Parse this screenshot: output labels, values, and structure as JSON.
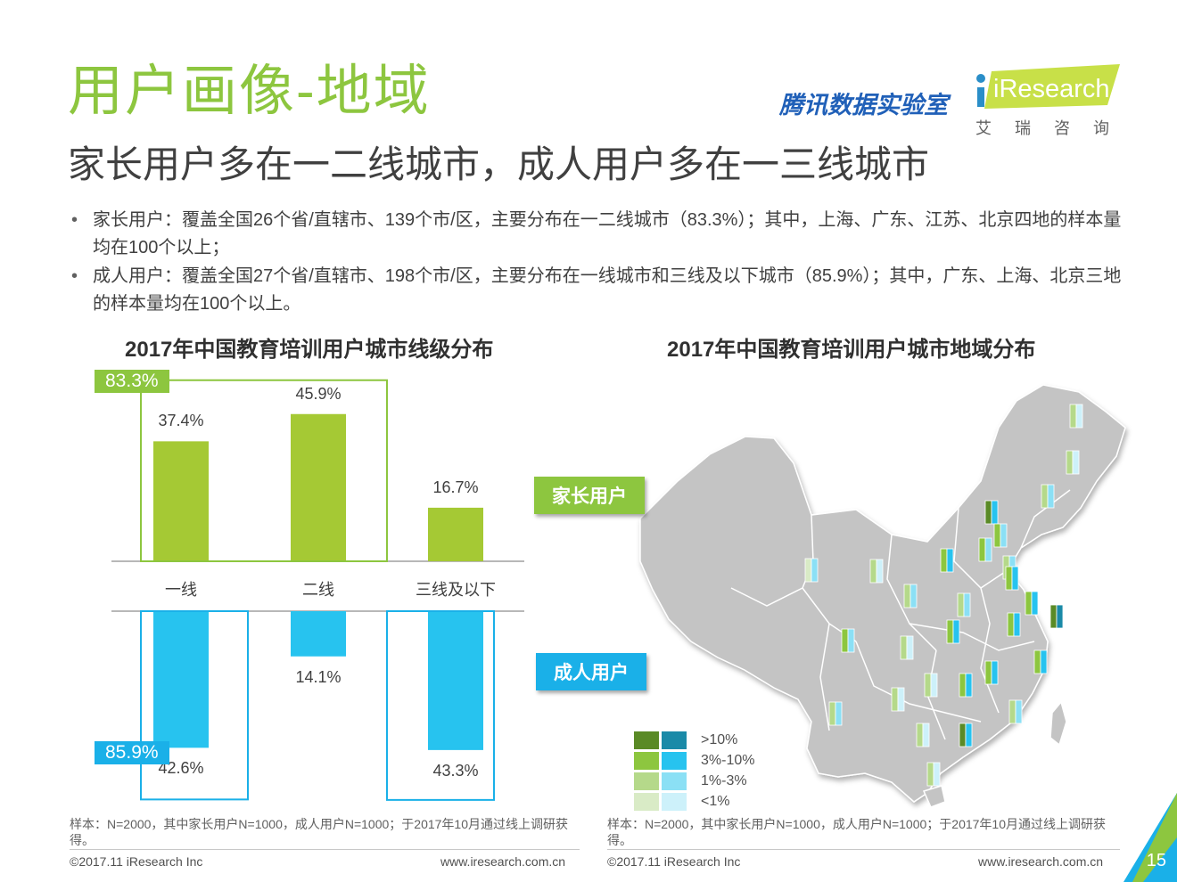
{
  "header": {
    "title": "用户画像-地域",
    "subtitle": "家长用户多在一二线城市，成人用户多在一三线城市",
    "brand_tencent": "腾讯数据实验室",
    "brand_iresearch": "iResearch",
    "brand_iresearch_cn": "艾瑞咨询"
  },
  "bullets": [
    "家长用户：覆盖全国26个省/直辖市、139个市/区，主要分布在一二线城市（83.3%）；其中，上海、广东、江苏、北京四地的样本量均在100个以上；",
    "成人用户：覆盖全国27个省/直辖市、198个市/区，主要分布在一线城市和三线及以下城市（85.9%）；其中，广东、上海、北京三地的样本量均在100个以上。"
  ],
  "colors": {
    "green": "#8dc63f",
    "bar_green": "#a5c934",
    "blue": "#1ab0e8",
    "bar_blue": "#27c3ef"
  },
  "chart_data": [
    {
      "type": "bar",
      "title": "2017年中国教育培训用户城市线级分布",
      "categories": [
        "一线",
        "二线",
        "三线及以下"
      ],
      "series": [
        {
          "name": "家长用户",
          "values": [
            37.4,
            45.9,
            16.7
          ],
          "labels": [
            "37.4%",
            "45.9%",
            "16.7%"
          ]
        },
        {
          "name": "成人用户",
          "values": [
            42.6,
            14.1,
            43.3
          ],
          "labels": [
            "42.6%",
            "14.1%",
            "43.3%"
          ]
        }
      ],
      "highlights": [
        {
          "series": "家长用户",
          "label": "83.3%",
          "categories": [
            "一线",
            "二线"
          ]
        },
        {
          "series": "成人用户",
          "label": "85.9%",
          "categories": [
            "一线",
            "三线及以下"
          ]
        }
      ],
      "ylim": [
        0,
        50
      ]
    },
    {
      "type": "map",
      "title": "2017年中国教育培训用户城市地域分布",
      "legend_tags": [
        "家长用户",
        "成人用户"
      ],
      "legend_levels": [
        ">10%",
        "3%-10%",
        "1%-3%",
        "<1%"
      ],
      "level_colors": {
        "green": [
          "#5a8a26",
          "#8dc63f",
          "#b5d98a",
          "#d9ebc6"
        ],
        "blue": [
          "#1a8aa8",
          "#27c3ef",
          "#8be0f5",
          "#cdf1fa"
        ]
      }
    }
  ],
  "footnotes": {
    "left": "样本：N=2000，其中家长用户N=1000，成人用户N=1000；于2017年10月通过线上调研获得。",
    "right": "样本：N=2000，其中家长用户N=1000，成人用户N=1000；于2017年10月通过线上调研获得。"
  },
  "footer": {
    "left_copyright": "©2017.11 iResearch Inc",
    "left_url": "www.iresearch.com.cn",
    "right_copyright": "©2017.11 iResearch Inc",
    "right_url": "www.iresearch.com.cn",
    "page_number": "15"
  }
}
